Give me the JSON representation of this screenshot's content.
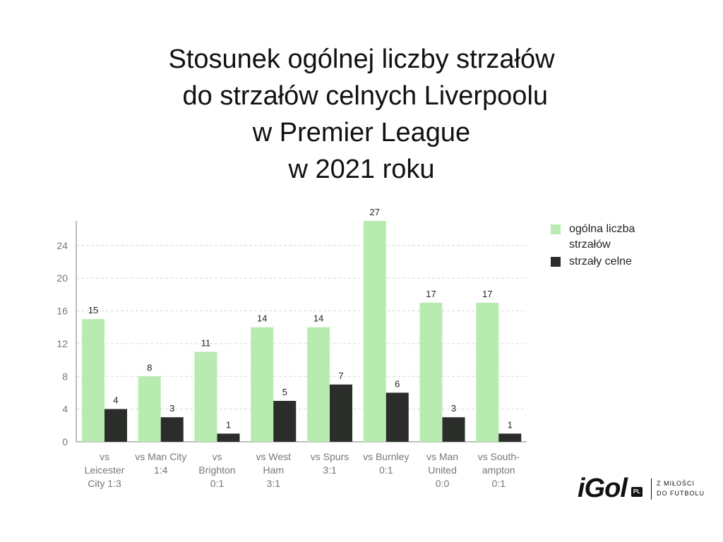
{
  "chart_data": {
    "type": "bar",
    "title_lines": [
      "Stosunek ogólnej liczby strzałów",
      " do strzałów celnych Liverpoolu",
      "w Premier League",
      "w 2021 roku"
    ],
    "categories": [
      [
        "vs",
        "Leicester",
        "City 1:3"
      ],
      [
        "vs Man City",
        "1:4"
      ],
      [
        "vs",
        "Brighton",
        "0:1"
      ],
      [
        "vs West",
        "Ham",
        "3:1"
      ],
      [
        "vs Spurs",
        "3:1"
      ],
      [
        "vs Burnley",
        "0:1"
      ],
      [
        "vs Man",
        "United",
        "0:0"
      ],
      [
        "vs South-",
        "ampton",
        "0:1"
      ]
    ],
    "series": [
      {
        "name": "ogólna liczba strzałów",
        "legend_lines": [
          "ogólna liczba",
          "strzałów"
        ],
        "color": "#b8ebb0",
        "values": [
          15,
          8,
          11,
          14,
          14,
          27,
          17,
          17
        ]
      },
      {
        "name": "strzały celne",
        "legend_lines": [
          "strzały celne"
        ],
        "color": "#2a2d2a",
        "values": [
          4,
          3,
          1,
          5,
          7,
          6,
          3,
          1
        ]
      }
    ],
    "yticks": [
      0,
      4,
      8,
      12,
      16,
      20,
      24
    ],
    "ylim": [
      0,
      27
    ],
    "grid": true,
    "data_labels": true,
    "legend_position": "right"
  },
  "brand": {
    "logo_text": "iGol",
    "logo_badge": "PL",
    "slogan_lines": [
      "Z MIŁOŚCI",
      "DO FUTBOLU"
    ]
  }
}
